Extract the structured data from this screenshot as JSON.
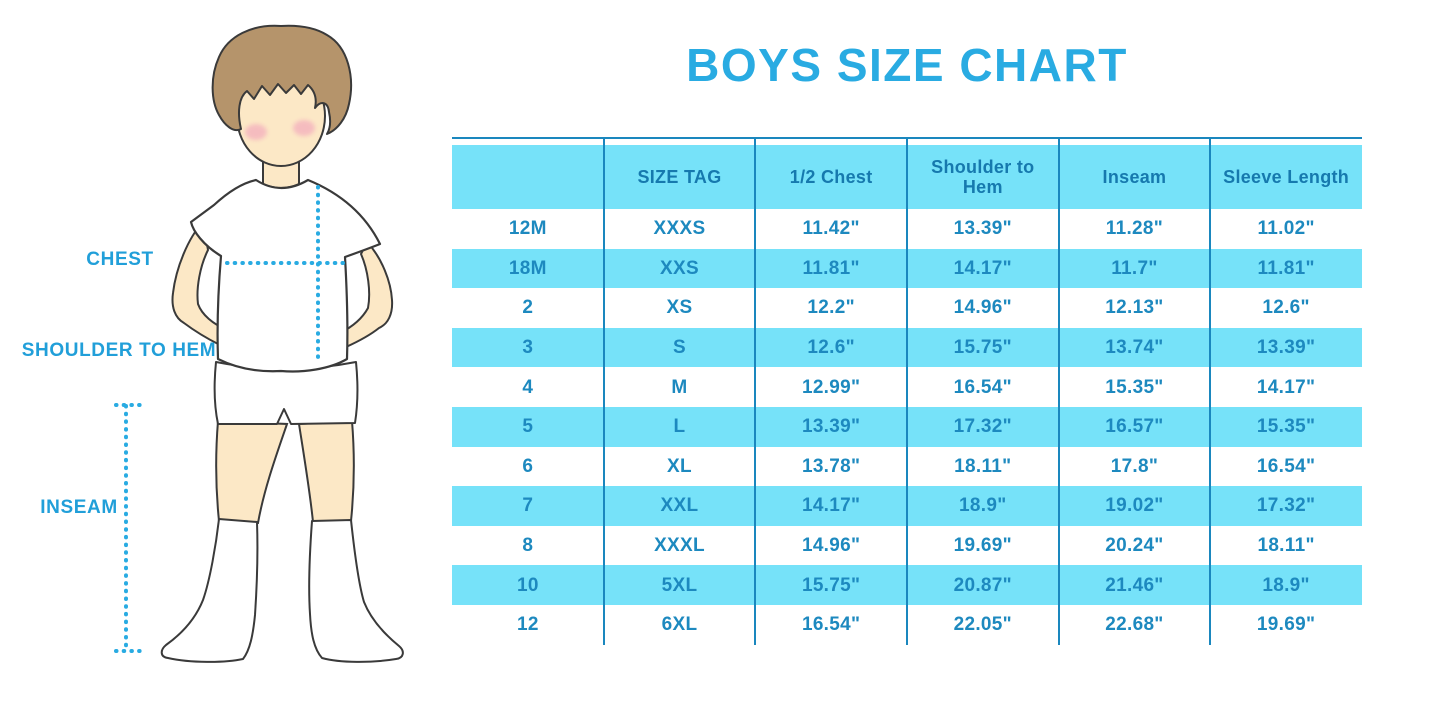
{
  "title": "BOYS SIZE CHART",
  "figure": {
    "labels": {
      "chest": "CHEST",
      "shoulder_to_hem": "SHOULDER TO HEM",
      "inseam": "INSEAM"
    }
  },
  "colors": {
    "accent": "#29ABE2",
    "label_blue": "#219FD9",
    "row_cyan": "#76E2F9",
    "line_blue": "#1A87BE",
    "header_text": "#1679AE",
    "cell_text": "#1D89BF",
    "dotted_line": "#29ABE2"
  },
  "chart_data": {
    "type": "table",
    "title": "BOYS SIZE CHART",
    "columns": [
      "",
      "SIZE TAG",
      "1/2 Chest",
      "Shoulder to Hem",
      "Inseam",
      "Sleeve Length"
    ],
    "rows": [
      [
        "12M",
        "XXXS",
        "11.42\"",
        "13.39\"",
        "11.28\"",
        "11.02\""
      ],
      [
        "18M",
        "XXS",
        "11.81\"",
        "14.17\"",
        "11.7\"",
        "11.81\""
      ],
      [
        "2",
        "XS",
        "12.2\"",
        "14.96\"",
        "12.13\"",
        "12.6\""
      ],
      [
        "3",
        "S",
        "12.6\"",
        "15.75\"",
        "13.74\"",
        "13.39\""
      ],
      [
        "4",
        "M",
        "12.99\"",
        "16.54\"",
        "15.35\"",
        "14.17\""
      ],
      [
        "5",
        "L",
        "13.39\"",
        "17.32\"",
        "16.57\"",
        "15.35\""
      ],
      [
        "6",
        "XL",
        "13.78\"",
        "18.11\"",
        "17.8\"",
        "16.54\""
      ],
      [
        "7",
        "XXL",
        "14.17\"",
        "18.9\"",
        "19.02\"",
        "17.32\""
      ],
      [
        "8",
        "XXXL",
        "14.96\"",
        "19.69\"",
        "20.24\"",
        "18.11\""
      ],
      [
        "10",
        "5XL",
        "15.75\"",
        "20.87\"",
        "21.46\"",
        "18.9\""
      ],
      [
        "12",
        "6XL",
        "16.54\"",
        "22.05\"",
        "22.68\"",
        "19.69\""
      ]
    ],
    "striping": "header cyan, then rows alternate white/cyan starting white",
    "grid": "vertical dividers only, top border line, no outer side borders"
  }
}
